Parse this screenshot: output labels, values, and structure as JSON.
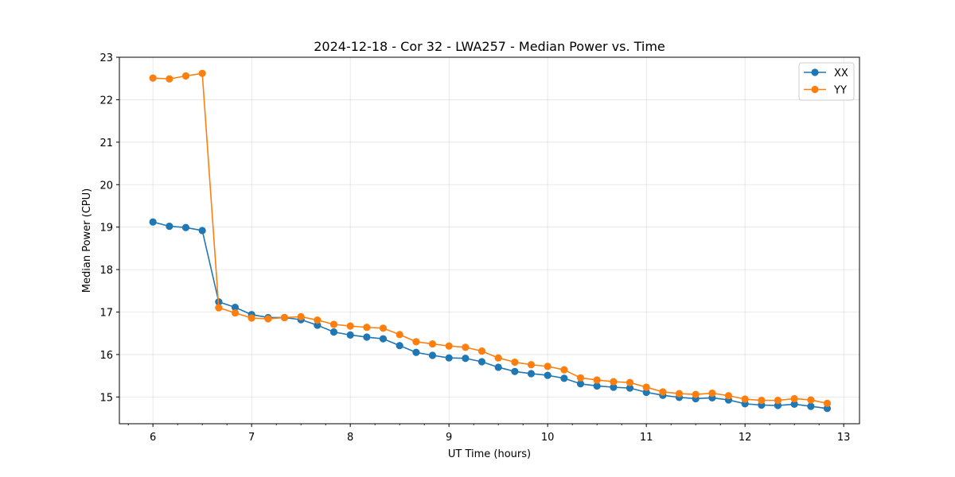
{
  "chart_data": {
    "type": "line",
    "title": "2024-12-18 - Cor 32 - LWA257 - Median Power vs. Time",
    "xlabel": "UT Time (hours)",
    "ylabel": "Median Power (CPU)",
    "xlim": [
      5.66,
      13.16
    ],
    "ylim": [
      14.37,
      23.0
    ],
    "xticks": [
      6,
      7,
      8,
      9,
      10,
      11,
      12,
      13
    ],
    "yticks": [
      15,
      16,
      17,
      18,
      19,
      20,
      21,
      22,
      23
    ],
    "grid": true,
    "legend_position": "top-right",
    "x": [
      6.0,
      6.167,
      6.333,
      6.5,
      6.667,
      6.833,
      7.0,
      7.167,
      7.333,
      7.5,
      7.667,
      7.833,
      8.0,
      8.167,
      8.333,
      8.5,
      8.667,
      8.833,
      9.0,
      9.167,
      9.333,
      9.5,
      9.667,
      9.833,
      10.0,
      10.167,
      10.333,
      10.5,
      10.667,
      10.833,
      11.0,
      11.167,
      11.333,
      11.5,
      11.667,
      11.833,
      12.0,
      12.167,
      12.333,
      12.5,
      12.667,
      12.833
    ],
    "series": [
      {
        "name": "XX",
        "color": "#1f77b4",
        "values": [
          19.12,
          19.02,
          18.99,
          18.92,
          17.24,
          17.11,
          16.94,
          16.87,
          16.87,
          16.82,
          16.69,
          16.53,
          16.46,
          16.41,
          16.37,
          16.21,
          16.05,
          15.98,
          15.92,
          15.91,
          15.83,
          15.7,
          15.6,
          15.55,
          15.51,
          15.44,
          15.31,
          15.26,
          15.23,
          15.21,
          15.11,
          15.04,
          14.99,
          14.96,
          14.98,
          14.93,
          14.84,
          14.81,
          14.8,
          14.83,
          14.78,
          14.73
        ]
      },
      {
        "name": "YY",
        "color": "#ff7f0e",
        "values": [
          22.51,
          22.49,
          22.56,
          22.62,
          17.1,
          16.98,
          16.86,
          16.84,
          16.87,
          16.89,
          16.81,
          16.71,
          16.67,
          16.64,
          16.62,
          16.47,
          16.3,
          16.25,
          16.2,
          16.17,
          16.08,
          15.92,
          15.82,
          15.76,
          15.72,
          15.64,
          15.45,
          15.4,
          15.36,
          15.34,
          15.23,
          15.12,
          15.08,
          15.06,
          15.09,
          15.03,
          14.95,
          14.92,
          14.92,
          14.96,
          14.93,
          14.85
        ]
      }
    ]
  }
}
